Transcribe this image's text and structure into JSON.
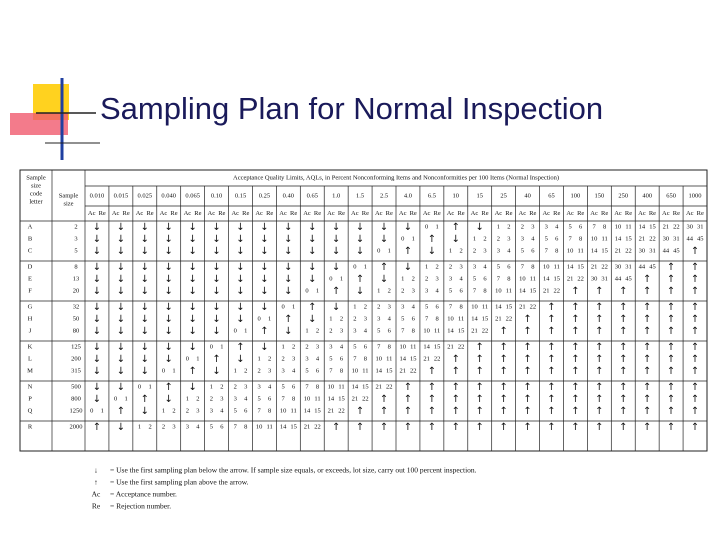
{
  "title": "Sampling Plan for Normal Inspection",
  "table": {
    "header": {
      "code_letter": [
        "Sample",
        "size",
        "code",
        "letter"
      ],
      "sample_size": [
        "Sample",
        "size"
      ],
      "aql_title": "Acceptance Quality Limits, AQLs, in Percent Nonconforming Items and Nonconformities per 100 Items (Normal Inspection)",
      "aqls": [
        "0.010",
        "0.015",
        "0.025",
        "0.040",
        "0.065",
        "0.10",
        "0.15",
        "0.25",
        "0.40",
        "0.65",
        "1.0",
        "1.5",
        "2.5",
        "4.0",
        "6.5",
        "10",
        "15",
        "25",
        "40",
        "65",
        "100",
        "150",
        "250",
        "400",
        "650",
        "1000"
      ],
      "subheaders": [
        "Ac",
        "Re"
      ]
    },
    "rows": [
      {
        "letter": "A",
        "sample_size": 2,
        "cells": [
          "↓",
          "↓",
          "↓",
          "↓",
          "↓",
          "↓",
          "↓",
          "↓",
          "↓",
          "↓",
          "↓",
          "↓",
          "↓",
          "↓",
          [
            0,
            1
          ],
          "↑",
          "↓",
          [
            1,
            2
          ],
          [
            2,
            3
          ],
          [
            3,
            4
          ],
          [
            5,
            6
          ],
          [
            7,
            8
          ],
          [
            10,
            11
          ],
          [
            14,
            15
          ],
          [
            21,
            22
          ],
          [
            30,
            31
          ]
        ]
      },
      {
        "letter": "B",
        "sample_size": 3,
        "cells": [
          "↓",
          "↓",
          "↓",
          "↓",
          "↓",
          "↓",
          "↓",
          "↓",
          "↓",
          "↓",
          "↓",
          "↓",
          "↓",
          [
            0,
            1
          ],
          "↑",
          "↓",
          [
            1,
            2
          ],
          [
            2,
            3
          ],
          [
            3,
            4
          ],
          [
            5,
            6
          ],
          [
            7,
            8
          ],
          [
            10,
            11
          ],
          [
            14,
            15
          ],
          [
            21,
            22
          ],
          [
            30,
            31
          ],
          [
            44,
            45
          ]
        ]
      },
      {
        "letter": "C",
        "sample_size": 5,
        "cells": [
          "↓",
          "↓",
          "↓",
          "↓",
          "↓",
          "↓",
          "↓",
          "↓",
          "↓",
          "↓",
          "↓",
          "↓",
          [
            0,
            1
          ],
          "↑",
          "↓",
          [
            1,
            2
          ],
          [
            2,
            3
          ],
          [
            3,
            4
          ],
          [
            5,
            6
          ],
          [
            7,
            8
          ],
          [
            10,
            11
          ],
          [
            14,
            15
          ],
          [
            21,
            22
          ],
          [
            30,
            31
          ],
          [
            44,
            45
          ],
          "↑"
        ]
      },
      {
        "letter": "D",
        "sample_size": 8,
        "cells": [
          "↓",
          "↓",
          "↓",
          "↓",
          "↓",
          "↓",
          "↓",
          "↓",
          "↓",
          "↓",
          "↓",
          [
            0,
            1
          ],
          "↑",
          "↓",
          [
            1,
            2
          ],
          [
            2,
            3
          ],
          [
            3,
            4
          ],
          [
            5,
            6
          ],
          [
            7,
            8
          ],
          [
            10,
            11
          ],
          [
            14,
            15
          ],
          [
            21,
            22
          ],
          [
            30,
            31
          ],
          [
            44,
            45
          ],
          "↑",
          "↑"
        ]
      },
      {
        "letter": "E",
        "sample_size": 13,
        "cells": [
          "↓",
          "↓",
          "↓",
          "↓",
          "↓",
          "↓",
          "↓",
          "↓",
          "↓",
          "↓",
          [
            0,
            1
          ],
          "↑",
          "↓",
          [
            1,
            2
          ],
          [
            2,
            3
          ],
          [
            3,
            4
          ],
          [
            5,
            6
          ],
          [
            7,
            8
          ],
          [
            10,
            11
          ],
          [
            14,
            15
          ],
          [
            21,
            22
          ],
          [
            30,
            31
          ],
          [
            44,
            45
          ],
          "↑",
          "↑",
          "↑"
        ]
      },
      {
        "letter": "F",
        "sample_size": 20,
        "cells": [
          "↓",
          "↓",
          "↓",
          "↓",
          "↓",
          "↓",
          "↓",
          "↓",
          "↓",
          [
            0,
            1
          ],
          "↑",
          "↓",
          [
            1,
            2
          ],
          [
            2,
            3
          ],
          [
            3,
            4
          ],
          [
            5,
            6
          ],
          [
            7,
            8
          ],
          [
            10,
            11
          ],
          [
            14,
            15
          ],
          [
            21,
            22
          ],
          "↑",
          "↑",
          "↑",
          "↑",
          "↑",
          "↑"
        ]
      },
      {
        "letter": "G",
        "sample_size": 32,
        "cells": [
          "↓",
          "↓",
          "↓",
          "↓",
          "↓",
          "↓",
          "↓",
          "↓",
          [
            0,
            1
          ],
          "↑",
          "↓",
          [
            1,
            2
          ],
          [
            2,
            3
          ],
          [
            3,
            4
          ],
          [
            5,
            6
          ],
          [
            7,
            8
          ],
          [
            10,
            11
          ],
          [
            14,
            15
          ],
          [
            21,
            22
          ],
          "↑",
          "↑",
          "↑",
          "↑",
          "↑",
          "↑",
          "↑"
        ]
      },
      {
        "letter": "H",
        "sample_size": 50,
        "cells": [
          "↓",
          "↓",
          "↓",
          "↓",
          "↓",
          "↓",
          "↓",
          [
            0,
            1
          ],
          "↑",
          "↓",
          [
            1,
            2
          ],
          [
            2,
            3
          ],
          [
            3,
            4
          ],
          [
            5,
            6
          ],
          [
            7,
            8
          ],
          [
            10,
            11
          ],
          [
            14,
            15
          ],
          [
            21,
            22
          ],
          "↑",
          "↑",
          "↑",
          "↑",
          "↑",
          "↑",
          "↑",
          "↑"
        ]
      },
      {
        "letter": "J",
        "sample_size": 80,
        "cells": [
          "↓",
          "↓",
          "↓",
          "↓",
          "↓",
          "↓",
          [
            0,
            1
          ],
          "↑",
          "↓",
          [
            1,
            2
          ],
          [
            2,
            3
          ],
          [
            3,
            4
          ],
          [
            5,
            6
          ],
          [
            7,
            8
          ],
          [
            10,
            11
          ],
          [
            14,
            15
          ],
          [
            21,
            22
          ],
          "↑",
          "↑",
          "↑",
          "↑",
          "↑",
          "↑",
          "↑",
          "↑",
          "↑"
        ]
      },
      {
        "letter": "K",
        "sample_size": 125,
        "cells": [
          "↓",
          "↓",
          "↓",
          "↓",
          "↓",
          [
            0,
            1
          ],
          "↑",
          "↓",
          [
            1,
            2
          ],
          [
            2,
            3
          ],
          [
            3,
            4
          ],
          [
            5,
            6
          ],
          [
            7,
            8
          ],
          [
            10,
            11
          ],
          [
            14,
            15
          ],
          [
            21,
            22
          ],
          "↑",
          "↑",
          "↑",
          "↑",
          "↑",
          "↑",
          "↑",
          "↑",
          "↑",
          "↑"
        ]
      },
      {
        "letter": "L",
        "sample_size": 200,
        "cells": [
          "↓",
          "↓",
          "↓",
          "↓",
          [
            0,
            1
          ],
          "↑",
          "↓",
          [
            1,
            2
          ],
          [
            2,
            3
          ],
          [
            3,
            4
          ],
          [
            5,
            6
          ],
          [
            7,
            8
          ],
          [
            10,
            11
          ],
          [
            14,
            15
          ],
          [
            21,
            22
          ],
          "↑",
          "↑",
          "↑",
          "↑",
          "↑",
          "↑",
          "↑",
          "↑",
          "↑",
          "↑",
          "↑"
        ]
      },
      {
        "letter": "M",
        "sample_size": 315,
        "cells": [
          "↓",
          "↓",
          "↓",
          [
            0,
            1
          ],
          "↑",
          "↓",
          [
            1,
            2
          ],
          [
            2,
            3
          ],
          [
            3,
            4
          ],
          [
            5,
            6
          ],
          [
            7,
            8
          ],
          [
            10,
            11
          ],
          [
            14,
            15
          ],
          [
            21,
            22
          ],
          "↑",
          "↑",
          "↑",
          "↑",
          "↑",
          "↑",
          "↑",
          "↑",
          "↑",
          "↑",
          "↑",
          "↑"
        ]
      },
      {
        "letter": "N",
        "sample_size": 500,
        "cells": [
          "↓",
          "↓",
          [
            0,
            1
          ],
          "↑",
          "↓",
          [
            1,
            2
          ],
          [
            2,
            3
          ],
          [
            3,
            4
          ],
          [
            5,
            6
          ],
          [
            7,
            8
          ],
          [
            10,
            11
          ],
          [
            14,
            15
          ],
          [
            21,
            22
          ],
          "↑",
          "↑",
          "↑",
          "↑",
          "↑",
          "↑",
          "↑",
          "↑",
          "↑",
          "↑",
          "↑",
          "↑",
          "↑"
        ]
      },
      {
        "letter": "P",
        "sample_size": 800,
        "cells": [
          "↓",
          [
            0,
            1
          ],
          "↑",
          "↓",
          [
            1,
            2
          ],
          [
            2,
            3
          ],
          [
            3,
            4
          ],
          [
            5,
            6
          ],
          [
            7,
            8
          ],
          [
            10,
            11
          ],
          [
            14,
            15
          ],
          [
            21,
            22
          ],
          "↑",
          "↑",
          "↑",
          "↑",
          "↑",
          "↑",
          "↑",
          "↑",
          "↑",
          "↑",
          "↑",
          "↑",
          "↑",
          "↑"
        ]
      },
      {
        "letter": "Q",
        "sample_size": 1250,
        "cells": [
          [
            0,
            1
          ],
          "↑",
          "↓",
          [
            1,
            2
          ],
          [
            2,
            3
          ],
          [
            3,
            4
          ],
          [
            5,
            6
          ],
          [
            7,
            8
          ],
          [
            10,
            11
          ],
          [
            14,
            15
          ],
          [
            21,
            22
          ],
          "↑",
          "↑",
          "↑",
          "↑",
          "↑",
          "↑",
          "↑",
          "↑",
          "↑",
          "↑",
          "↑",
          "↑",
          "↑",
          "↑",
          "↑"
        ]
      },
      {
        "letter": "R",
        "sample_size": 2000,
        "cells": [
          "↑",
          "↓",
          [
            1,
            2
          ],
          [
            2,
            3
          ],
          [
            3,
            4
          ],
          [
            5,
            6
          ],
          [
            7,
            8
          ],
          [
            10,
            11
          ],
          [
            14,
            15
          ],
          [
            21,
            22
          ],
          "↑",
          "↑",
          "↑",
          "↑",
          "↑",
          "↑",
          "↑",
          "↑",
          "↑",
          "↑",
          "↑",
          "↑",
          "↑",
          "↑",
          "↑",
          "↑"
        ]
      }
    ]
  },
  "legend": [
    {
      "symbol": "↓",
      "text": "= Use the first sampling plan below the arrow. If sample size equals, or exceeds, lot size, carry out 100 percent inspection."
    },
    {
      "symbol": "↑",
      "text": "= Use the first sampling plan above the arrow."
    },
    {
      "symbol": "Ac",
      "text": "= Acceptance number."
    },
    {
      "symbol": "Re",
      "text": "= Rejection number."
    }
  ]
}
